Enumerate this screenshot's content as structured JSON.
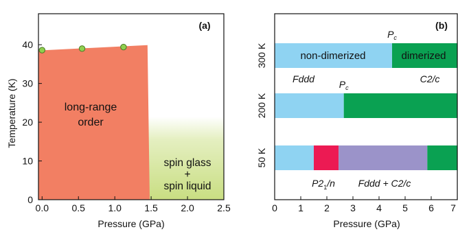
{
  "colors": {
    "lro_fill": "#f27f63",
    "spin_glass_green": "#c9de82",
    "point_fill": "#8fcf4f",
    "light_blue": "#8fd3f2",
    "green": "#0aa152",
    "red": "#ec1a53",
    "purple": "#9b93c9",
    "fddd_text": "#36a9e1",
    "c2c_text": "#0aa152",
    "p21n_text": "#ec1a53",
    "mix_text": "#8e86c6"
  },
  "chart_data": [
    {
      "type": "area",
      "panel_label": "(a)",
      "xlabel": "Pressure (GPa)",
      "ylabel": "Temperature (K)",
      "xlim": [
        -0.05,
        2.5
      ],
      "ylim": [
        0,
        48
      ],
      "xticks": [
        "0.0",
        "0.5",
        "1.0",
        "1.5",
        "2.0",
        "2.5"
      ],
      "xtick_values": [
        0,
        0.5,
        1.0,
        1.5,
        2.0,
        2.5
      ],
      "yticks": [
        "0",
        "10",
        "20",
        "30",
        "40"
      ],
      "ytick_values": [
        0,
        10,
        20,
        30,
        40
      ],
      "points": [
        {
          "x": 0.0,
          "y": 38.6
        },
        {
          "x": 0.55,
          "y": 39.0
        },
        {
          "x": 1.12,
          "y": 39.4
        }
      ],
      "long_range_order_boundary": {
        "x": [
          -0.05,
          1.45
        ],
        "y": [
          38.5,
          39.9
        ],
        "x_end_bottom": 1.48
      },
      "regions": [
        {
          "label_lines": [
            "long-range",
            "order"
          ]
        },
        {
          "label_lines": [
            "spin glass",
            "+",
            "spin liquid"
          ]
        }
      ]
    },
    {
      "type": "bar",
      "orientation": "horizontal",
      "stacked": true,
      "panel_label": "(b)",
      "xlabel": "Pressure (GPa)",
      "xlim": [
        0,
        7
      ],
      "xticks": [
        "0",
        "1",
        "2",
        "3",
        "4",
        "5",
        "6",
        "7"
      ],
      "xtick_values": [
        0,
        1,
        2,
        3,
        4,
        5,
        6,
        7
      ],
      "rows": [
        {
          "label": "300 K",
          "segments": [
            {
              "start": 0,
              "end": 4.5,
              "color": "#8fd3f2",
              "label": "non-dimerized"
            },
            {
              "start": 4.5,
              "end": 7,
              "color": "#0aa152",
              "label": "dimerized"
            }
          ],
          "pc_label": "P",
          "pc_sub": "c",
          "pc_value": 4.5
        },
        {
          "label": "200 K",
          "segments": [
            {
              "start": 0,
              "end": 2.65,
              "color": "#8fd3f2",
              "label": ""
            },
            {
              "start": 2.65,
              "end": 7,
              "color": "#0aa152",
              "label": ""
            }
          ],
          "pc_label": "P",
          "pc_sub": "c",
          "pc_value": 2.65
        },
        {
          "label": "50 K",
          "segments": [
            {
              "start": 0,
              "end": 1.5,
              "color": "#8fd3f2",
              "label": ""
            },
            {
              "start": 1.5,
              "end": 2.45,
              "color": "#ec1a53",
              "label": ""
            },
            {
              "start": 2.45,
              "end": 5.85,
              "color": "#9b93c9",
              "label": ""
            },
            {
              "start": 5.85,
              "end": 7,
              "color": "#0aa152",
              "label": ""
            }
          ]
        }
      ],
      "phase_annotations": {
        "fddd": "Fddd",
        "c2c": "C2/c",
        "p21n_a": "P2",
        "p21n_sub": "1",
        "p21n_b": "/n",
        "mix": "Fddd + C2/c"
      }
    }
  ]
}
